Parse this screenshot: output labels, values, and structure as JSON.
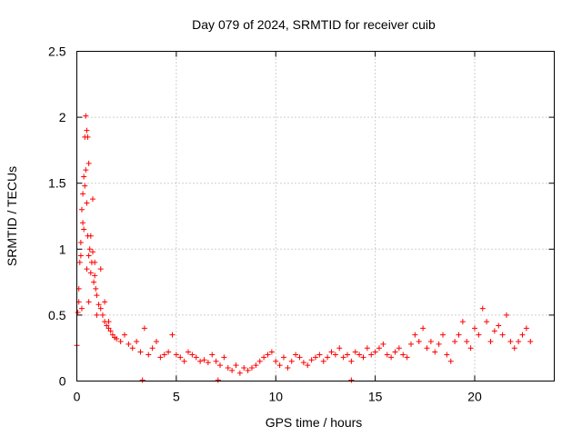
{
  "chart_data": {
    "type": "scatter",
    "title": "Day 079 of 2024, SRMTID for receiver cuib",
    "xlabel": "GPS time / hours",
    "ylabel": "SRMTID / TECUs",
    "xlim": [
      0,
      24
    ],
    "ylim": [
      0,
      2.5
    ],
    "xticks": [
      0,
      5,
      10,
      15,
      20
    ],
    "xtick_labels": [
      "0",
      "5",
      "10",
      "15",
      "20"
    ],
    "yticks": [
      0,
      0.5,
      1,
      1.5,
      2,
      2.5
    ],
    "ytick_labels": [
      "0",
      "0.5",
      "1",
      "1.5",
      "2",
      "2.5"
    ],
    "grid": true,
    "marker": "plus",
    "series": [
      {
        "name": "SRMTID",
        "color": "#ff0000",
        "x": [
          0.0,
          0.05,
          0.1,
          0.15,
          0.2,
          0.25,
          0.3,
          0.35,
          0.4,
          0.45,
          0.5,
          0.55,
          0.6,
          0.65,
          0.7,
          0.75,
          0.8,
          0.85,
          0.9,
          0.95,
          1.0,
          1.1,
          1.2,
          1.3,
          1.4,
          1.5,
          1.6,
          1.7,
          1.8,
          1.9,
          2.0,
          2.2,
          2.4,
          2.6,
          2.8,
          3.0,
          3.2,
          3.4,
          3.6,
          3.8,
          4.0,
          4.2,
          4.4,
          4.6,
          4.8,
          5.0,
          5.2,
          5.4,
          5.6,
          5.8,
          6.0,
          6.2,
          6.4,
          6.6,
          6.8,
          7.0,
          7.2,
          7.4,
          7.6,
          7.8,
          8.0,
          8.2,
          8.4,
          8.6,
          8.8,
          9.0,
          9.2,
          9.4,
          9.6,
          9.8,
          10.0,
          10.2,
          10.4,
          10.6,
          10.8,
          11.0,
          11.2,
          11.4,
          11.6,
          11.8,
          12.0,
          12.2,
          12.4,
          12.6,
          12.8,
          13.0,
          13.2,
          13.4,
          13.6,
          13.8,
          14.0,
          14.2,
          14.4,
          14.6,
          14.8,
          15.0,
          15.2,
          15.4,
          15.6,
          15.8,
          16.0,
          16.2,
          16.4,
          16.6,
          16.8,
          17.0,
          17.2,
          17.4,
          17.6,
          17.8,
          18.0,
          18.2,
          18.4,
          18.6,
          18.8,
          19.0,
          19.2,
          19.4,
          19.6,
          19.8,
          20.0,
          20.2,
          20.4,
          20.6,
          20.8,
          21.0,
          21.2,
          21.4,
          21.6,
          21.8,
          22.0,
          22.2,
          22.4,
          22.6,
          22.8,
          0.1,
          0.2,
          0.3,
          0.4,
          0.5,
          0.6,
          0.7,
          0.8,
          0.9,
          1.0,
          1.2,
          1.4,
          1.6,
          0.45,
          0.5,
          0.55,
          0.35,
          0.6,
          0.25,
          3.3,
          7.1,
          13.8
        ],
        "y": [
          0.27,
          0.52,
          0.6,
          0.9,
          1.05,
          1.3,
          1.42,
          1.55,
          1.85,
          1.6,
          1.35,
          1.1,
          0.95,
          1.0,
          0.82,
          0.9,
          0.98,
          0.75,
          0.8,
          0.7,
          0.65,
          0.58,
          0.55,
          0.5,
          0.45,
          0.42,
          0.4,
          0.38,
          0.35,
          0.33,
          0.32,
          0.3,
          0.35,
          0.28,
          0.25,
          0.3,
          0.22,
          0.4,
          0.2,
          0.25,
          0.3,
          0.18,
          0.2,
          0.22,
          0.35,
          0.2,
          0.18,
          0.15,
          0.22,
          0.2,
          0.18,
          0.15,
          0.16,
          0.14,
          0.2,
          0.15,
          0.12,
          0.18,
          0.1,
          0.08,
          0.12,
          0.06,
          0.1,
          0.08,
          0.1,
          0.12,
          0.15,
          0.18,
          0.2,
          0.22,
          0.15,
          0.12,
          0.18,
          0.1,
          0.15,
          0.2,
          0.18,
          0.14,
          0.12,
          0.16,
          0.18,
          0.2,
          0.15,
          0.18,
          0.22,
          0.2,
          0.25,
          0.18,
          0.2,
          0.15,
          0.22,
          0.2,
          0.18,
          0.25,
          0.2,
          0.22,
          0.25,
          0.28,
          0.2,
          0.18,
          0.22,
          0.25,
          0.2,
          0.18,
          0.28,
          0.35,
          0.3,
          0.4,
          0.25,
          0.3,
          0.22,
          0.28,
          0.35,
          0.2,
          0.15,
          0.3,
          0.35,
          0.45,
          0.3,
          0.25,
          0.4,
          0.35,
          0.55,
          0.45,
          0.3,
          0.38,
          0.42,
          0.35,
          0.5,
          0.3,
          0.25,
          0.3,
          0.35,
          0.4,
          0.3,
          0.7,
          0.95,
          1.2,
          1.48,
          0.85,
          0.6,
          1.1,
          1.38,
          0.9,
          0.5,
          0.85,
          0.6,
          0.45,
          2.01,
          1.9,
          1.85,
          1.15,
          1.65,
          0.55,
          0.0,
          0.0,
          0.0
        ]
      }
    ]
  }
}
